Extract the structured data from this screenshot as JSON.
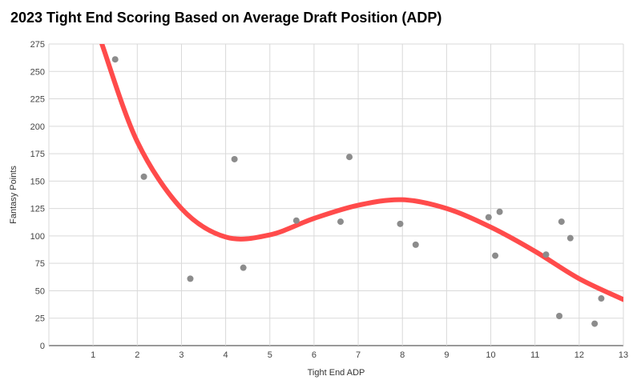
{
  "chart_data": {
    "type": "scatter",
    "title": "2023 Tight End Scoring Based on Average Draft Position (ADP)",
    "xlabel": "Tight End ADP",
    "ylabel": "Fantasy Points",
    "xlim": [
      0,
      13
    ],
    "ylim": [
      0,
      275
    ],
    "x_ticks": [
      1,
      2,
      3,
      4,
      5,
      6,
      7,
      8,
      9,
      10,
      11,
      12,
      13
    ],
    "y_ticks": [
      0,
      25,
      50,
      75,
      100,
      125,
      150,
      175,
      200,
      225,
      250,
      275
    ],
    "grid": true,
    "legend": "none",
    "series": [
      {
        "points": [
          {
            "x": 1.5,
            "y": 261
          },
          {
            "x": 2.15,
            "y": 154
          },
          {
            "x": 3.2,
            "y": 61
          },
          {
            "x": 4.2,
            "y": 170
          },
          {
            "x": 4.4,
            "y": 71
          },
          {
            "x": 5.6,
            "y": 114
          },
          {
            "x": 6.6,
            "y": 113
          },
          {
            "x": 6.8,
            "y": 172
          },
          {
            "x": 7.95,
            "y": 111
          },
          {
            "x": 8.3,
            "y": 92
          },
          {
            "x": 9.95,
            "y": 117
          },
          {
            "x": 10.1,
            "y": 82
          },
          {
            "x": 10.2,
            "y": 122
          },
          {
            "x": 11.25,
            "y": 83
          },
          {
            "x": 11.55,
            "y": 27
          },
          {
            "x": 11.6,
            "y": 113
          },
          {
            "x": 11.8,
            "y": 98
          },
          {
            "x": 12.35,
            "y": 20
          },
          {
            "x": 12.5,
            "y": 43
          }
        ],
        "color": "#8c8c8c"
      }
    ],
    "trendline": {
      "type": "polynomial",
      "degree": 3,
      "color": "#ff4b4b",
      "points": [
        {
          "x": 1.2,
          "y": 275
        },
        {
          "x": 2.0,
          "y": 186
        },
        {
          "x": 3.0,
          "y": 125
        },
        {
          "x": 4.0,
          "y": 99
        },
        {
          "x": 5.0,
          "y": 101
        },
        {
          "x": 6.0,
          "y": 116
        },
        {
          "x": 7.0,
          "y": 128
        },
        {
          "x": 8.0,
          "y": 133
        },
        {
          "x": 9.0,
          "y": 125
        },
        {
          "x": 10.0,
          "y": 108
        },
        {
          "x": 11.0,
          "y": 86
        },
        {
          "x": 12.0,
          "y": 61
        },
        {
          "x": 13.0,
          "y": 42
        }
      ]
    }
  }
}
